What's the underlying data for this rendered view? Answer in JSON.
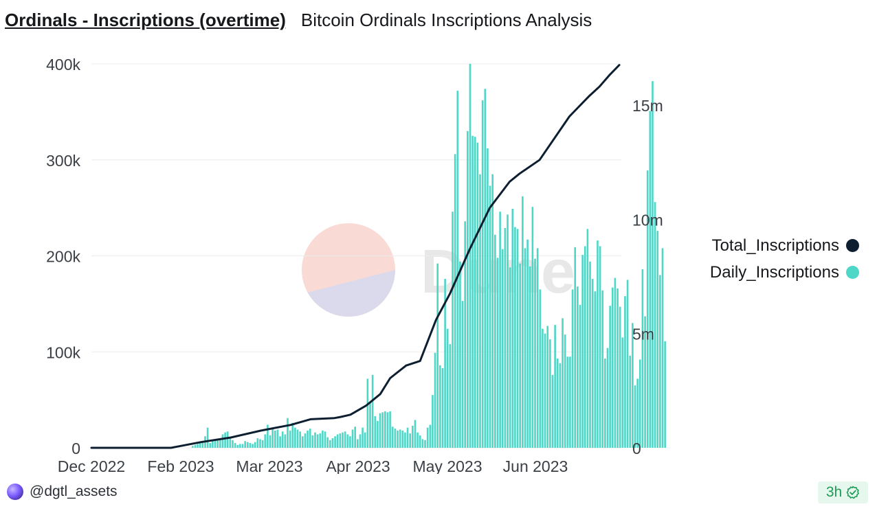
{
  "header": {
    "title": "Ordinals - Inscriptions (overtime)",
    "subtitle": "Bitcoin Ordinals Inscriptions Analysis"
  },
  "footer": {
    "username": "@dgtl_assets",
    "freshness": "3h",
    "check_icon": "check-circle-icon"
  },
  "watermark": {
    "text": "Dune"
  },
  "colors": {
    "daily": "#4ed6c6",
    "total": "#0c1e30",
    "grid": "#ececec"
  },
  "chart_data": {
    "type": "bar+line",
    "title": "Ordinals - Inscriptions (overtime)",
    "x_tick_labels": [
      "Dec 2022",
      "Feb 2023",
      "Mar 2023",
      "Apr 2023",
      "May 2023",
      "Jun 2023"
    ],
    "y_left": {
      "ticks": [
        0,
        100000,
        200000,
        300000,
        400000
      ],
      "tick_labels": [
        "0",
        "100k",
        "200k",
        "300k",
        "400k"
      ],
      "range": [
        0,
        400000
      ]
    },
    "y_right": {
      "ticks": [
        0,
        5000000,
        10000000,
        15000000
      ],
      "tick_labels": [
        "0",
        "5m",
        "10m",
        "15m"
      ],
      "range": [
        0,
        16800000
      ]
    },
    "legend": [
      {
        "name": "Total_Inscriptions",
        "color": "#0c1e30"
      },
      {
        "name": "Daily_Inscriptions",
        "color": "#4ed6c6"
      }
    ],
    "x_days_total": 212,
    "series": [
      {
        "name": "Daily_Inscriptions",
        "type": "bar",
        "axis": "left",
        "start_day": 40,
        "values": [
          2000,
          3000,
          4000,
          5000,
          7000,
          12000,
          21000,
          5000,
          8000,
          9000,
          9000,
          9000,
          14000,
          16000,
          17000,
          11000,
          8000,
          5000,
          3000,
          4000,
          4000,
          7000,
          6000,
          5000,
          4000,
          6000,
          10000,
          9000,
          8000,
          14000,
          24000,
          13000,
          20000,
          18000,
          19000,
          12000,
          17000,
          14000,
          31000,
          18000,
          26000,
          21000,
          19000,
          17000,
          12000,
          15000,
          18000,
          20000,
          13000,
          16000,
          14000,
          15000,
          18000,
          17000,
          11000,
          8000,
          10000,
          12000,
          14000,
          15000,
          16000,
          17000,
          14000,
          12000,
          19000,
          22000,
          9000,
          14000,
          21000,
          16000,
          72000,
          47000,
          76000,
          33000,
          28000,
          36000,
          37000,
          38000,
          37000,
          38000,
          22000,
          20000,
          18000,
          19000,
          18000,
          16000,
          21000,
          15000,
          23000,
          29000,
          16000,
          13000,
          9000,
          8000,
          21000,
          24000,
          55000,
          99000,
          192000,
          86000,
          83000,
          176000,
          124000,
          108000,
          246000,
          306000,
          372000,
          194000,
          153000,
          236000,
          330000,
          400000,
          325000,
          324000,
          318000,
          285000,
          362000,
          374000,
          312000,
          273000,
          285000,
          222000,
          198000,
          246000,
          207000,
          229000,
          243000,
          188000,
          249000,
          230000,
          228000,
          192000,
          262000,
          208000,
          217000,
          189000,
          251000,
          197000,
          208000,
          165000,
          124000,
          119000,
          127000,
          113000,
          76000,
          128000,
          93000,
          88000,
          135000,
          118000,
          95000,
          95000,
          165000,
          209000,
          168000,
          149000,
          201000,
          210000,
          228000,
          194000,
          176000,
          163000,
          216000,
          210000,
          164000,
          93000,
          104000,
          148000,
          167000,
          177000,
          166000,
          147000,
          115000,
          158000,
          175000,
          96000,
          130000,
          65000,
          72000,
          92000,
          186000,
          137000,
          289000,
          351000,
          382000,
          256000,
          226000,
          180000,
          208000,
          111000
        ]
      },
      {
        "name": "Total_Inscriptions",
        "type": "line",
        "axis": "right",
        "points": [
          [
            0,
            0
          ],
          [
            40,
            0
          ],
          [
            55,
            250000
          ],
          [
            70,
            450000
          ],
          [
            85,
            750000
          ],
          [
            100,
            1000000
          ],
          [
            110,
            1250000
          ],
          [
            122,
            1300000
          ],
          [
            125,
            1350000
          ],
          [
            130,
            1450000
          ],
          [
            138,
            1850000
          ],
          [
            145,
            2350000
          ],
          [
            150,
            3050000
          ],
          [
            158,
            3600000
          ],
          [
            165,
            3800000
          ],
          [
            173,
            5600000
          ],
          [
            180,
            6750000
          ],
          [
            190,
            8700000
          ],
          [
            200,
            10500000
          ],
          [
            210,
            11650000
          ],
          [
            215,
            12000000
          ],
          [
            225,
            12600000
          ],
          [
            240,
            14500000
          ],
          [
            250,
            15400000
          ],
          [
            255,
            15800000
          ],
          [
            260,
            16300000
          ],
          [
            265,
            16750000
          ]
        ]
      }
    ]
  }
}
